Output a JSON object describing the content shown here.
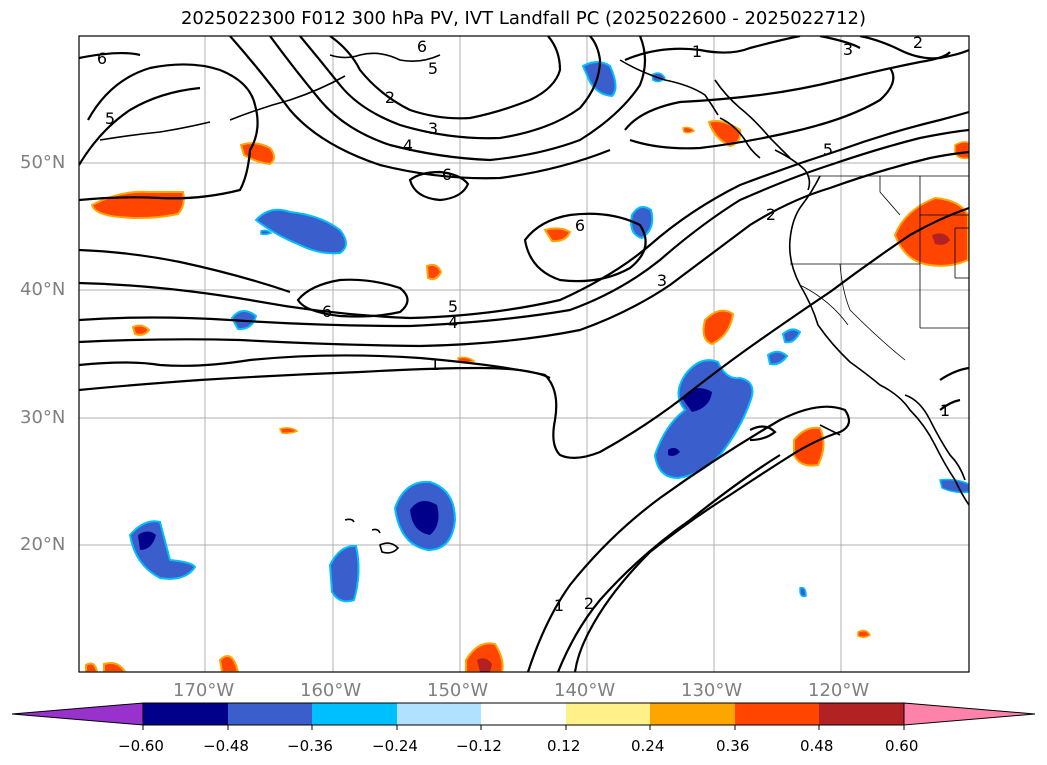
{
  "title": "2025022300 F012 300 hPa PV, IVT Landfall PC (2025022600 - 2025022712)",
  "latitude_labels": [
    "50°N",
    "40°N",
    "30°N",
    "20°N"
  ],
  "longitude_labels": [
    "170°W",
    "160°W",
    "150°W",
    "140°W",
    "130°W",
    "120°W"
  ],
  "contour_labels": [
    "6",
    "5",
    "5",
    "6",
    "2",
    "3",
    "4",
    "6",
    "6",
    "6",
    "5",
    "4",
    "1",
    "3",
    "2",
    "5",
    "3",
    "2",
    "1",
    "1",
    "2",
    "1"
  ],
  "colorbar": {
    "ticks": [
      "−0.60",
      "−0.48",
      "−0.36",
      "−0.24",
      "−0.12",
      "0.12",
      "0.24",
      "0.36",
      "0.48",
      "0.60"
    ],
    "colors": [
      "#9932cc",
      "#00008b",
      "#3a5fcd",
      "#00bfff",
      "#b0e2ff",
      "#ffffff",
      "#fff08a",
      "#ffa500",
      "#ff4500",
      "#b22222",
      "#ff82ab"
    ]
  },
  "colors": {
    "contour": "#000000",
    "grid": "#b0b0b0",
    "label_grey": "#808080"
  }
}
